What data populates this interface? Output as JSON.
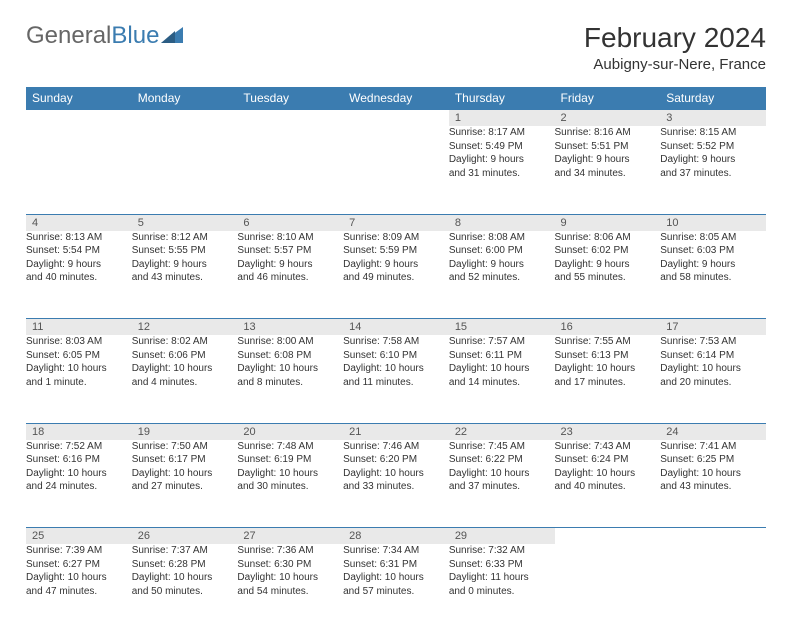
{
  "brand": {
    "name1": "General",
    "name2": "Blue"
  },
  "title": "February 2024",
  "location": "Aubigny-sur-Nere, France",
  "header_bg": "#3b7cb0",
  "day_headers": [
    "Sunday",
    "Monday",
    "Tuesday",
    "Wednesday",
    "Thursday",
    "Friday",
    "Saturday"
  ],
  "weeks": [
    {
      "numbers": [
        "",
        "",
        "",
        "",
        "1",
        "2",
        "3"
      ],
      "cells": [
        null,
        null,
        null,
        null,
        {
          "sunrise": "8:17 AM",
          "sunset": "5:49 PM",
          "daylight_l1": "Daylight: 9 hours",
          "daylight_l2": "and 31 minutes."
        },
        {
          "sunrise": "8:16 AM",
          "sunset": "5:51 PM",
          "daylight_l1": "Daylight: 9 hours",
          "daylight_l2": "and 34 minutes."
        },
        {
          "sunrise": "8:15 AM",
          "sunset": "5:52 PM",
          "daylight_l1": "Daylight: 9 hours",
          "daylight_l2": "and 37 minutes."
        }
      ]
    },
    {
      "numbers": [
        "4",
        "5",
        "6",
        "7",
        "8",
        "9",
        "10"
      ],
      "cells": [
        {
          "sunrise": "8:13 AM",
          "sunset": "5:54 PM",
          "daylight_l1": "Daylight: 9 hours",
          "daylight_l2": "and 40 minutes."
        },
        {
          "sunrise": "8:12 AM",
          "sunset": "5:55 PM",
          "daylight_l1": "Daylight: 9 hours",
          "daylight_l2": "and 43 minutes."
        },
        {
          "sunrise": "8:10 AM",
          "sunset": "5:57 PM",
          "daylight_l1": "Daylight: 9 hours",
          "daylight_l2": "and 46 minutes."
        },
        {
          "sunrise": "8:09 AM",
          "sunset": "5:59 PM",
          "daylight_l1": "Daylight: 9 hours",
          "daylight_l2": "and 49 minutes."
        },
        {
          "sunrise": "8:08 AM",
          "sunset": "6:00 PM",
          "daylight_l1": "Daylight: 9 hours",
          "daylight_l2": "and 52 minutes."
        },
        {
          "sunrise": "8:06 AM",
          "sunset": "6:02 PM",
          "daylight_l1": "Daylight: 9 hours",
          "daylight_l2": "and 55 minutes."
        },
        {
          "sunrise": "8:05 AM",
          "sunset": "6:03 PM",
          "daylight_l1": "Daylight: 9 hours",
          "daylight_l2": "and 58 minutes."
        }
      ]
    },
    {
      "numbers": [
        "11",
        "12",
        "13",
        "14",
        "15",
        "16",
        "17"
      ],
      "cells": [
        {
          "sunrise": "8:03 AM",
          "sunset": "6:05 PM",
          "daylight_l1": "Daylight: 10 hours",
          "daylight_l2": "and 1 minute."
        },
        {
          "sunrise": "8:02 AM",
          "sunset": "6:06 PM",
          "daylight_l1": "Daylight: 10 hours",
          "daylight_l2": "and 4 minutes."
        },
        {
          "sunrise": "8:00 AM",
          "sunset": "6:08 PM",
          "daylight_l1": "Daylight: 10 hours",
          "daylight_l2": "and 8 minutes."
        },
        {
          "sunrise": "7:58 AM",
          "sunset": "6:10 PM",
          "daylight_l1": "Daylight: 10 hours",
          "daylight_l2": "and 11 minutes."
        },
        {
          "sunrise": "7:57 AM",
          "sunset": "6:11 PM",
          "daylight_l1": "Daylight: 10 hours",
          "daylight_l2": "and 14 minutes."
        },
        {
          "sunrise": "7:55 AM",
          "sunset": "6:13 PM",
          "daylight_l1": "Daylight: 10 hours",
          "daylight_l2": "and 17 minutes."
        },
        {
          "sunrise": "7:53 AM",
          "sunset": "6:14 PM",
          "daylight_l1": "Daylight: 10 hours",
          "daylight_l2": "and 20 minutes."
        }
      ]
    },
    {
      "numbers": [
        "18",
        "19",
        "20",
        "21",
        "22",
        "23",
        "24"
      ],
      "cells": [
        {
          "sunrise": "7:52 AM",
          "sunset": "6:16 PM",
          "daylight_l1": "Daylight: 10 hours",
          "daylight_l2": "and 24 minutes."
        },
        {
          "sunrise": "7:50 AM",
          "sunset": "6:17 PM",
          "daylight_l1": "Daylight: 10 hours",
          "daylight_l2": "and 27 minutes."
        },
        {
          "sunrise": "7:48 AM",
          "sunset": "6:19 PM",
          "daylight_l1": "Daylight: 10 hours",
          "daylight_l2": "and 30 minutes."
        },
        {
          "sunrise": "7:46 AM",
          "sunset": "6:20 PM",
          "daylight_l1": "Daylight: 10 hours",
          "daylight_l2": "and 33 minutes."
        },
        {
          "sunrise": "7:45 AM",
          "sunset": "6:22 PM",
          "daylight_l1": "Daylight: 10 hours",
          "daylight_l2": "and 37 minutes."
        },
        {
          "sunrise": "7:43 AM",
          "sunset": "6:24 PM",
          "daylight_l1": "Daylight: 10 hours",
          "daylight_l2": "and 40 minutes."
        },
        {
          "sunrise": "7:41 AM",
          "sunset": "6:25 PM",
          "daylight_l1": "Daylight: 10 hours",
          "daylight_l2": "and 43 minutes."
        }
      ]
    },
    {
      "numbers": [
        "25",
        "26",
        "27",
        "28",
        "29",
        "",
        ""
      ],
      "cells": [
        {
          "sunrise": "7:39 AM",
          "sunset": "6:27 PM",
          "daylight_l1": "Daylight: 10 hours",
          "daylight_l2": "and 47 minutes."
        },
        {
          "sunrise": "7:37 AM",
          "sunset": "6:28 PM",
          "daylight_l1": "Daylight: 10 hours",
          "daylight_l2": "and 50 minutes."
        },
        {
          "sunrise": "7:36 AM",
          "sunset": "6:30 PM",
          "daylight_l1": "Daylight: 10 hours",
          "daylight_l2": "and 54 minutes."
        },
        {
          "sunrise": "7:34 AM",
          "sunset": "6:31 PM",
          "daylight_l1": "Daylight: 10 hours",
          "daylight_l2": "and 57 minutes."
        },
        {
          "sunrise": "7:32 AM",
          "sunset": "6:33 PM",
          "daylight_l1": "Daylight: 11 hours",
          "daylight_l2": "and 0 minutes."
        },
        null,
        null
      ]
    }
  ],
  "labels": {
    "sunrise_prefix": "Sunrise: ",
    "sunset_prefix": "Sunset: "
  }
}
